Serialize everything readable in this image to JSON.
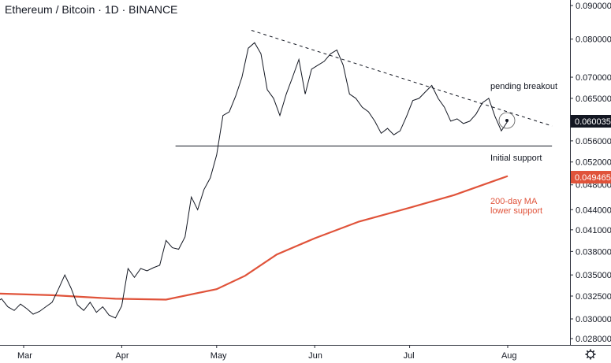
{
  "chart_data": {
    "type": "line",
    "title": "Ethereum / Bitcoin · 1D · BINANCE",
    "xlabel": "",
    "ylabel": "",
    "x_tick_labels": [
      "Mar",
      "Apr",
      "May",
      "Jun",
      "Jul",
      "Aug"
    ],
    "y_ticks": [
      0.028,
      0.03,
      0.0325,
      0.035,
      0.038,
      0.041,
      0.044,
      0.048,
      0.052,
      0.056,
      0.065,
      0.07,
      0.08,
      0.09
    ],
    "y_tick_labels": [
      "0.028000",
      "0.030000",
      "0.032500",
      "0.035000",
      "0.038000",
      "0.041000",
      "0.044000",
      "0.048000",
      "0.052000",
      "0.056000",
      "0.065000",
      "0.070000",
      "0.080000",
      "0.090000"
    ],
    "log_scale": true,
    "grid": false,
    "series": [
      {
        "color": "#131722",
        "values": [
          [
            "2021-02-20",
            0.0317
          ],
          [
            "2021-02-22",
            0.0322
          ],
          [
            "2021-02-24",
            0.0313
          ],
          [
            "2021-02-26",
            0.0309
          ],
          [
            "2021-02-28",
            0.0316
          ],
          [
            "2021-03-02",
            0.0311
          ],
          [
            "2021-03-04",
            0.0305
          ],
          [
            "2021-03-06",
            0.0308
          ],
          [
            "2021-03-08",
            0.0313
          ],
          [
            "2021-03-10",
            0.0318
          ],
          [
            "2021-03-12",
            0.0333
          ],
          [
            "2021-03-14",
            0.035
          ],
          [
            "2021-03-16",
            0.0334
          ],
          [
            "2021-03-18",
            0.0315
          ],
          [
            "2021-03-20",
            0.0309
          ],
          [
            "2021-03-22",
            0.0318
          ],
          [
            "2021-03-24",
            0.0307
          ],
          [
            "2021-03-26",
            0.0313
          ],
          [
            "2021-03-28",
            0.0304
          ],
          [
            "2021-03-30",
            0.0301
          ],
          [
            "2021-04-01",
            0.0314
          ],
          [
            "2021-04-03",
            0.0358
          ],
          [
            "2021-04-05",
            0.0347
          ],
          [
            "2021-04-07",
            0.0358
          ],
          [
            "2021-04-09",
            0.0355
          ],
          [
            "2021-04-11",
            0.0359
          ],
          [
            "2021-04-13",
            0.0362
          ],
          [
            "2021-04-15",
            0.0395
          ],
          [
            "2021-04-17",
            0.0385
          ],
          [
            "2021-04-19",
            0.0383
          ],
          [
            "2021-04-21",
            0.04
          ],
          [
            "2021-04-23",
            0.046
          ],
          [
            "2021-04-25",
            0.044
          ],
          [
            "2021-04-27",
            0.0472
          ],
          [
            "2021-04-29",
            0.0492
          ],
          [
            "2021-05-01",
            0.0533
          ],
          [
            "2021-05-03",
            0.0612
          ],
          [
            "2021-05-05",
            0.062
          ],
          [
            "2021-05-07",
            0.0655
          ],
          [
            "2021-05-09",
            0.07
          ],
          [
            "2021-05-11",
            0.0775
          ],
          [
            "2021-05-13",
            0.079
          ],
          [
            "2021-05-15",
            0.076
          ],
          [
            "2021-05-17",
            0.067
          ],
          [
            "2021-05-19",
            0.065
          ],
          [
            "2021-05-21",
            0.0612
          ],
          [
            "2021-05-23",
            0.066
          ],
          [
            "2021-05-25",
            0.07
          ],
          [
            "2021-05-27",
            0.0745
          ],
          [
            "2021-05-29",
            0.066
          ],
          [
            "2021-05-31",
            0.072
          ],
          [
            "2021-06-02",
            0.073
          ],
          [
            "2021-06-04",
            0.074
          ],
          [
            "2021-06-06",
            0.076
          ],
          [
            "2021-06-08",
            0.077
          ],
          [
            "2021-06-10",
            0.073
          ],
          [
            "2021-06-12",
            0.066
          ],
          [
            "2021-06-14",
            0.065
          ],
          [
            "2021-06-16",
            0.063
          ],
          [
            "2021-06-18",
            0.062
          ],
          [
            "2021-06-20",
            0.06
          ],
          [
            "2021-06-22",
            0.0575
          ],
          [
            "2021-06-24",
            0.0585
          ],
          [
            "2021-06-26",
            0.0572
          ],
          [
            "2021-06-28",
            0.058
          ],
          [
            "2021-06-30",
            0.061
          ],
          [
            "2021-07-02",
            0.0645
          ],
          [
            "2021-07-04",
            0.065
          ],
          [
            "2021-07-06",
            0.0665
          ],
          [
            "2021-07-08",
            0.068
          ],
          [
            "2021-07-10",
            0.065
          ],
          [
            "2021-07-12",
            0.063
          ],
          [
            "2021-07-14",
            0.06
          ],
          [
            "2021-07-16",
            0.0605
          ],
          [
            "2021-07-18",
            0.0595
          ],
          [
            "2021-07-20",
            0.06
          ],
          [
            "2021-07-22",
            0.0615
          ],
          [
            "2021-07-24",
            0.064
          ],
          [
            "2021-07-26",
            0.065
          ],
          [
            "2021-07-28",
            0.061
          ],
          [
            "2021-07-30",
            0.058
          ],
          [
            "2021-08-01",
            0.06
          ]
        ]
      },
      {
        "name": "200-day MA",
        "color": "#e0533a",
        "values": [
          [
            "2021-02-20",
            0.0328
          ],
          [
            "2021-03-10",
            0.0326
          ],
          [
            "2021-03-30",
            0.0322
          ],
          [
            "2021-04-15",
            0.0321
          ],
          [
            "2021-05-01",
            0.0333
          ],
          [
            "2021-05-10",
            0.0349
          ],
          [
            "2021-05-20",
            0.0376
          ],
          [
            "2021-06-01",
            0.0398
          ],
          [
            "2021-06-15",
            0.0422
          ],
          [
            "2021-07-01",
            0.0443
          ],
          [
            "2021-07-15",
            0.0463
          ],
          [
            "2021-08-01",
            0.0495
          ]
        ]
      }
    ],
    "annotations": {
      "pending_breakout": "pending breakout",
      "initial_support": "Initial support",
      "ma_label_line1": "200-day MA",
      "ma_label_line2": "lower support"
    },
    "trendline": {
      "from": [
        "2021-05-12",
        0.0825
      ],
      "to": [
        "2021-08-15",
        0.059
      ]
    },
    "support_level": {
      "value": 0.055,
      "from": "2021-04-18",
      "to": "2021-08-15"
    },
    "last_price": {
      "value": "0.060035",
      "color": "#131722"
    },
    "ma_price": {
      "value": "0.049465",
      "color": "#e0533a"
    }
  }
}
